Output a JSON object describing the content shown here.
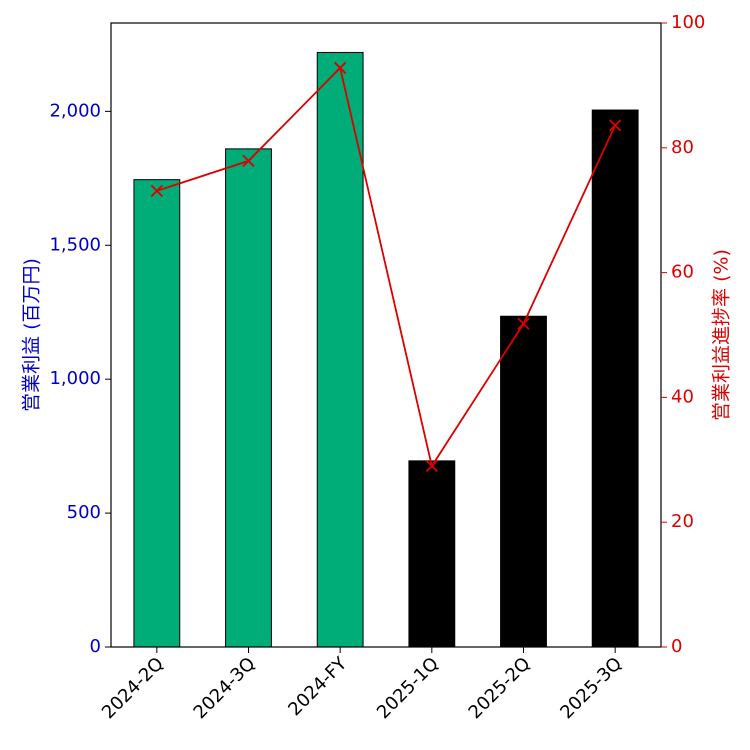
{
  "chart_data": {
    "type": "bar",
    "categories": [
      "2024-2Q",
      "2024-3Q",
      "2024-FY",
      "2025-1Q",
      "2025-2Q",
      "2025-3Q"
    ],
    "series": [
      {
        "axis": "left",
        "type": "bar",
        "values": [
          1745,
          1860,
          2220,
          695,
          1235,
          2005
        ],
        "colors": [
          "#00ad78",
          "#00ad78",
          "#00ad78",
          "#000000",
          "#000000",
          "#000000"
        ]
      },
      {
        "axis": "right",
        "type": "line",
        "marker": "x",
        "color": "#dd0000",
        "values": [
          73.1,
          77.9,
          92.8,
          29.0,
          51.8,
          83.6
        ]
      }
    ],
    "ylabel_left": "営業利益 (百万円)",
    "ylabel_right": "営業利益進捗率 (%)",
    "ylim_left": [
      0,
      2330
    ],
    "ylim_right": [
      0,
      100
    ],
    "yticks_left": [
      0,
      500,
      1000,
      1500,
      2000
    ],
    "yticks_left_labels": [
      "0",
      "500",
      "1,000",
      "1,500",
      "2,000"
    ],
    "yticks_right": [
      0,
      20,
      40,
      60,
      80,
      100
    ],
    "yticks_right_labels": [
      "0",
      "20",
      "40",
      "60",
      "80",
      "100"
    ],
    "colors": {
      "left_axis": "#0000cc",
      "right_axis": "#dd0000",
      "bar_2024": "#00ad78",
      "bar_2025": "#000000"
    },
    "grid": false
  }
}
